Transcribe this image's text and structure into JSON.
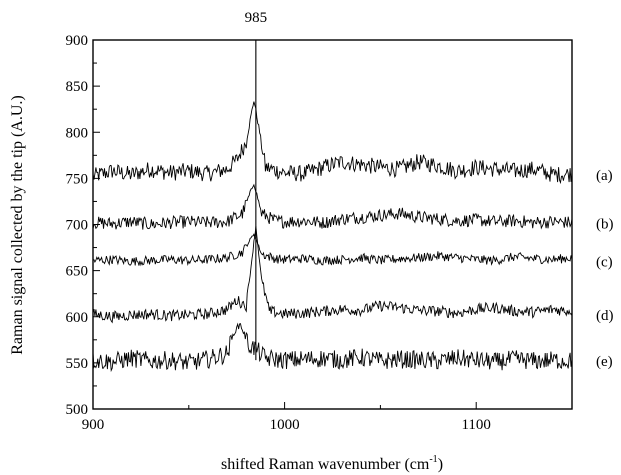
{
  "chart_data": {
    "type": "line",
    "title": "",
    "xlabel": "shifted Raman wavenumber (cm",
    "xlabel_sup": "-1",
    "xlabel_close": ")",
    "ylabel": "Raman signal collected by the tip (A.U.)",
    "xlim": [
      900,
      1150
    ],
    "ylim": [
      500,
      900
    ],
    "x_ticks": [
      900,
      1000,
      1100
    ],
    "y_ticks": [
      500,
      550,
      600,
      650,
      700,
      750,
      800,
      850,
      900
    ],
    "grid": false,
    "annotations": [
      {
        "label": "985",
        "x": 985,
        "type": "vertical-line"
      }
    ],
    "series": [
      {
        "name": "(a)",
        "baseline": 755,
        "noise": 9,
        "peak_x": 984,
        "peak_height": 80,
        "points": [
          [
            900,
            752
          ],
          [
            910,
            758
          ],
          [
            920,
            754
          ],
          [
            930,
            760
          ],
          [
            940,
            756
          ],
          [
            950,
            758
          ],
          [
            960,
            755
          ],
          [
            970,
            760
          ],
          [
            975,
            770
          ],
          [
            980,
            790
          ],
          [
            984,
            835
          ],
          [
            987,
            800
          ],
          [
            990,
            762
          ],
          [
            1000,
            756
          ],
          [
            1010,
            755
          ],
          [
            1020,
            762
          ],
          [
            1030,
            768
          ],
          [
            1040,
            765
          ],
          [
            1050,
            762
          ],
          [
            1060,
            760
          ],
          [
            1070,
            768
          ],
          [
            1080,
            764
          ],
          [
            1090,
            758
          ],
          [
            1100,
            762
          ],
          [
            1110,
            760
          ],
          [
            1120,
            758
          ],
          [
            1130,
            760
          ],
          [
            1140,
            754
          ],
          [
            1150,
            755
          ]
        ]
      },
      {
        "name": "(b)",
        "baseline": 702,
        "noise": 7,
        "peak_x": 984,
        "peak_height": 45,
        "points": [
          [
            900,
            702
          ],
          [
            910,
            701
          ],
          [
            920,
            703
          ],
          [
            930,
            700
          ],
          [
            940,
            702
          ],
          [
            950,
            703
          ],
          [
            960,
            702
          ],
          [
            970,
            703
          ],
          [
            978,
            712
          ],
          [
            984,
            745
          ],
          [
            988,
            712
          ],
          [
            995,
            704
          ],
          [
            1000,
            703
          ],
          [
            1010,
            704
          ],
          [
            1020,
            702
          ],
          [
            1030,
            706
          ],
          [
            1040,
            708
          ],
          [
            1050,
            710
          ],
          [
            1060,
            712
          ],
          [
            1070,
            708
          ],
          [
            1080,
            706
          ],
          [
            1090,
            704
          ],
          [
            1100,
            705
          ],
          [
            1110,
            703
          ],
          [
            1120,
            704
          ],
          [
            1130,
            702
          ],
          [
            1140,
            703
          ],
          [
            1150,
            702
          ]
        ]
      },
      {
        "name": "(c)",
        "baseline": 661,
        "noise": 5,
        "peak_x": 984,
        "peak_height": 30,
        "points": [
          [
            900,
            661
          ],
          [
            910,
            662
          ],
          [
            920,
            660
          ],
          [
            930,
            661
          ],
          [
            940,
            662
          ],
          [
            950,
            661
          ],
          [
            960,
            662
          ],
          [
            970,
            664
          ],
          [
            978,
            670
          ],
          [
            984,
            690
          ],
          [
            988,
            668
          ],
          [
            995,
            663
          ],
          [
            1000,
            662
          ],
          [
            1010,
            663
          ],
          [
            1020,
            661
          ],
          [
            1030,
            662
          ],
          [
            1040,
            664
          ],
          [
            1050,
            661
          ],
          [
            1060,
            663
          ],
          [
            1070,
            664
          ],
          [
            1080,
            666
          ],
          [
            1090,
            664
          ],
          [
            1100,
            662
          ],
          [
            1110,
            661
          ],
          [
            1120,
            665
          ],
          [
            1130,
            663
          ],
          [
            1140,
            662
          ],
          [
            1150,
            664
          ]
        ]
      },
      {
        "name": "(d)",
        "baseline": 603,
        "noise": 6,
        "peak_x": 985,
        "peak_height": 95,
        "points": [
          [
            900,
            603
          ],
          [
            910,
            600
          ],
          [
            920,
            602
          ],
          [
            930,
            603
          ],
          [
            940,
            601
          ],
          [
            950,
            602
          ],
          [
            960,
            603
          ],
          [
            970,
            608
          ],
          [
            975,
            618
          ],
          [
            980,
            612
          ],
          [
            985,
            698
          ],
          [
            988,
            640
          ],
          [
            992,
            606
          ],
          [
            1000,
            603
          ],
          [
            1010,
            604
          ],
          [
            1020,
            606
          ],
          [
            1030,
            608
          ],
          [
            1040,
            607
          ],
          [
            1050,
            612
          ],
          [
            1060,
            610
          ],
          [
            1070,
            607
          ],
          [
            1080,
            606
          ],
          [
            1090,
            604
          ],
          [
            1100,
            608
          ],
          [
            1110,
            610
          ],
          [
            1120,
            606
          ],
          [
            1130,
            605
          ],
          [
            1140,
            608
          ],
          [
            1150,
            606
          ]
        ]
      },
      {
        "name": "(e)",
        "baseline": 553,
        "noise": 10,
        "peak_x": 976,
        "peak_height": 40,
        "points": [
          [
            900,
            553
          ],
          [
            910,
            551
          ],
          [
            920,
            555
          ],
          [
            930,
            552
          ],
          [
            940,
            553
          ],
          [
            950,
            550
          ],
          [
            960,
            554
          ],
          [
            970,
            560
          ],
          [
            974,
            585
          ],
          [
            977,
            592
          ],
          [
            981,
            570
          ],
          [
            985,
            565
          ],
          [
            990,
            555
          ],
          [
            1000,
            553
          ],
          [
            1010,
            554
          ],
          [
            1020,
            555
          ],
          [
            1030,
            553
          ],
          [
            1040,
            556
          ],
          [
            1050,
            552
          ],
          [
            1060,
            554
          ],
          [
            1070,
            553
          ],
          [
            1080,
            552
          ],
          [
            1090,
            555
          ],
          [
            1100,
            553
          ],
          [
            1110,
            551
          ],
          [
            1120,
            554
          ],
          [
            1130,
            552
          ],
          [
            1140,
            553
          ],
          [
            1150,
            552
          ]
        ]
      }
    ]
  }
}
